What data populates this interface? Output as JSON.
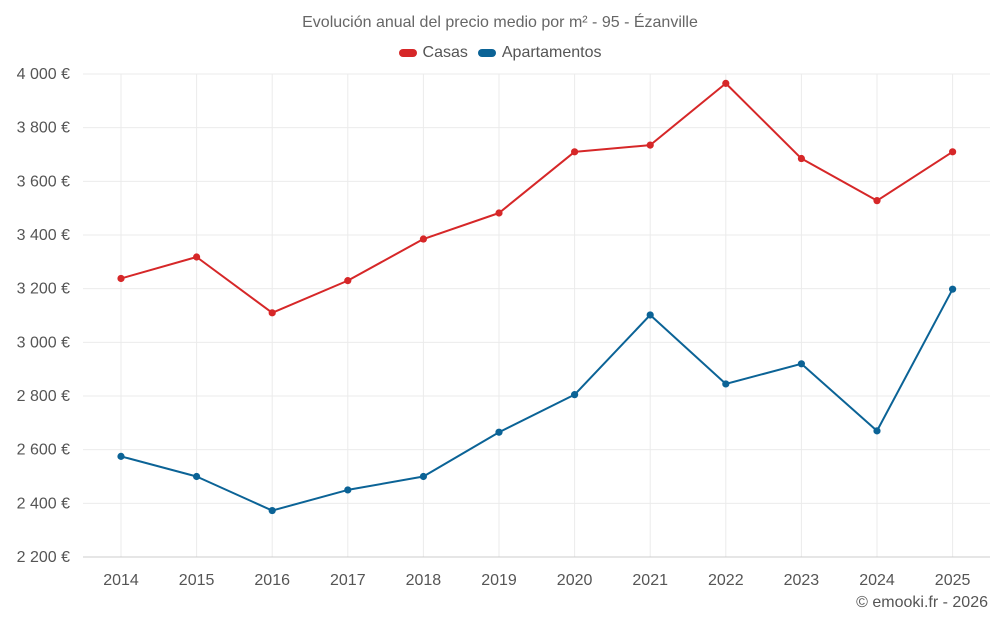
{
  "colors": {
    "casas": "#d62728",
    "apartamentos": "#0b6396",
    "grid": "#ebebeb",
    "axis_text": "#555555"
  },
  "chart_data": {
    "type": "line",
    "title": "Evolución anual del precio medio por m² - 95 - Ézanville",
    "x": [
      "2014",
      "2015",
      "2016",
      "2017",
      "2018",
      "2019",
      "2020",
      "2021",
      "2022",
      "2023",
      "2024",
      "2025"
    ],
    "series": [
      {
        "name": "Casas",
        "color": "#d62728",
        "values": [
          3238,
          3318,
          3110,
          3230,
          3385,
          3482,
          3710,
          3735,
          3965,
          3685,
          3528,
          3710
        ]
      },
      {
        "name": "Apartamentos",
        "color": "#0b6396",
        "values": [
          2575,
          2500,
          2373,
          2450,
          2500,
          2665,
          2805,
          3102,
          2845,
          2920,
          2670,
          3198
        ]
      }
    ],
    "y_ticks": [
      "2 200 €",
      "2 400 €",
      "2 600 €",
      "2 800 €",
      "3 000 €",
      "3 200 €",
      "3 400 €",
      "3 600 €",
      "3 800 €",
      "4 000 €"
    ],
    "y_tick_values": [
      2200,
      2400,
      2600,
      2800,
      3000,
      3200,
      3400,
      3600,
      3800,
      4000
    ],
    "ylim": [
      2200,
      4000
    ],
    "xlabel": "",
    "ylabel": "",
    "grid": true,
    "legend_position": "top-center"
  },
  "credit": "© emooki.fr - 2026"
}
